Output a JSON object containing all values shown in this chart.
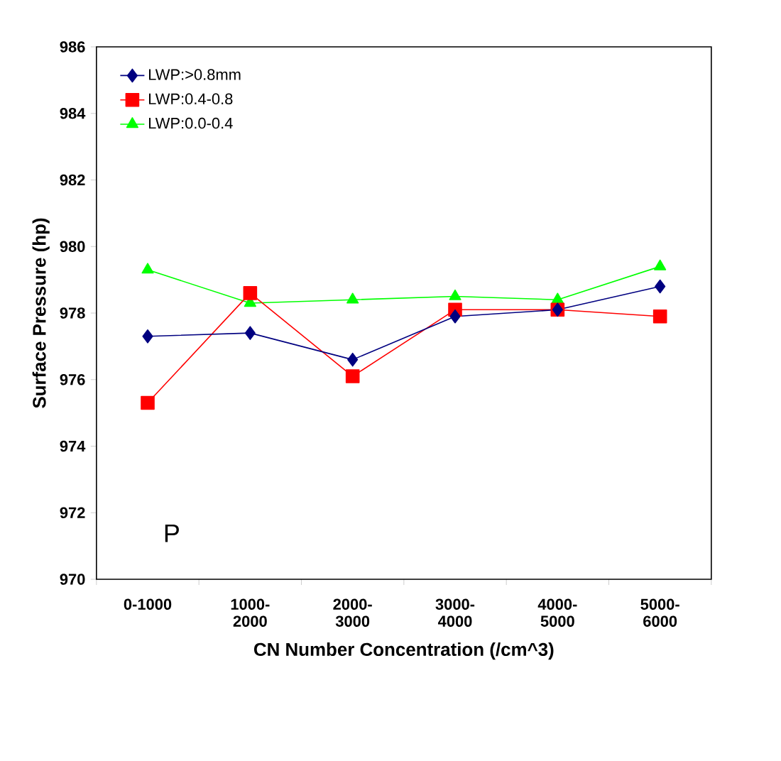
{
  "chart_data": {
    "type": "line",
    "xlabel": "CN Number Concentration (/cm^3)",
    "ylabel": "Surface Pressure (hp)",
    "categories": [
      "0-1000",
      "1000-2000",
      "2000-3000",
      "3000-4000",
      "4000-5000",
      "5000-6000"
    ],
    "series": [
      {
        "name": "LWP:>0.8mm",
        "color": "#000080",
        "marker": "diamond",
        "values": [
          977.3,
          977.4,
          976.6,
          977.9,
          978.1,
          978.8
        ]
      },
      {
        "name": "LWP:0.4-0.8",
        "color": "#ff0000",
        "marker": "square",
        "values": [
          975.3,
          978.6,
          976.1,
          978.1,
          978.1,
          977.9
        ]
      },
      {
        "name": "LWP:0.0-0.4",
        "color": "#00ff00",
        "marker": "triangle",
        "values": [
          979.3,
          978.3,
          978.4,
          978.5,
          978.4,
          979.4
        ]
      }
    ],
    "ylim": [
      970,
      986
    ],
    "yticks": [
      970,
      972,
      974,
      976,
      978,
      980,
      982,
      984,
      986
    ],
    "grid": false,
    "legend": "top left",
    "line_style": "solid",
    "annotations": [
      "P"
    ]
  }
}
